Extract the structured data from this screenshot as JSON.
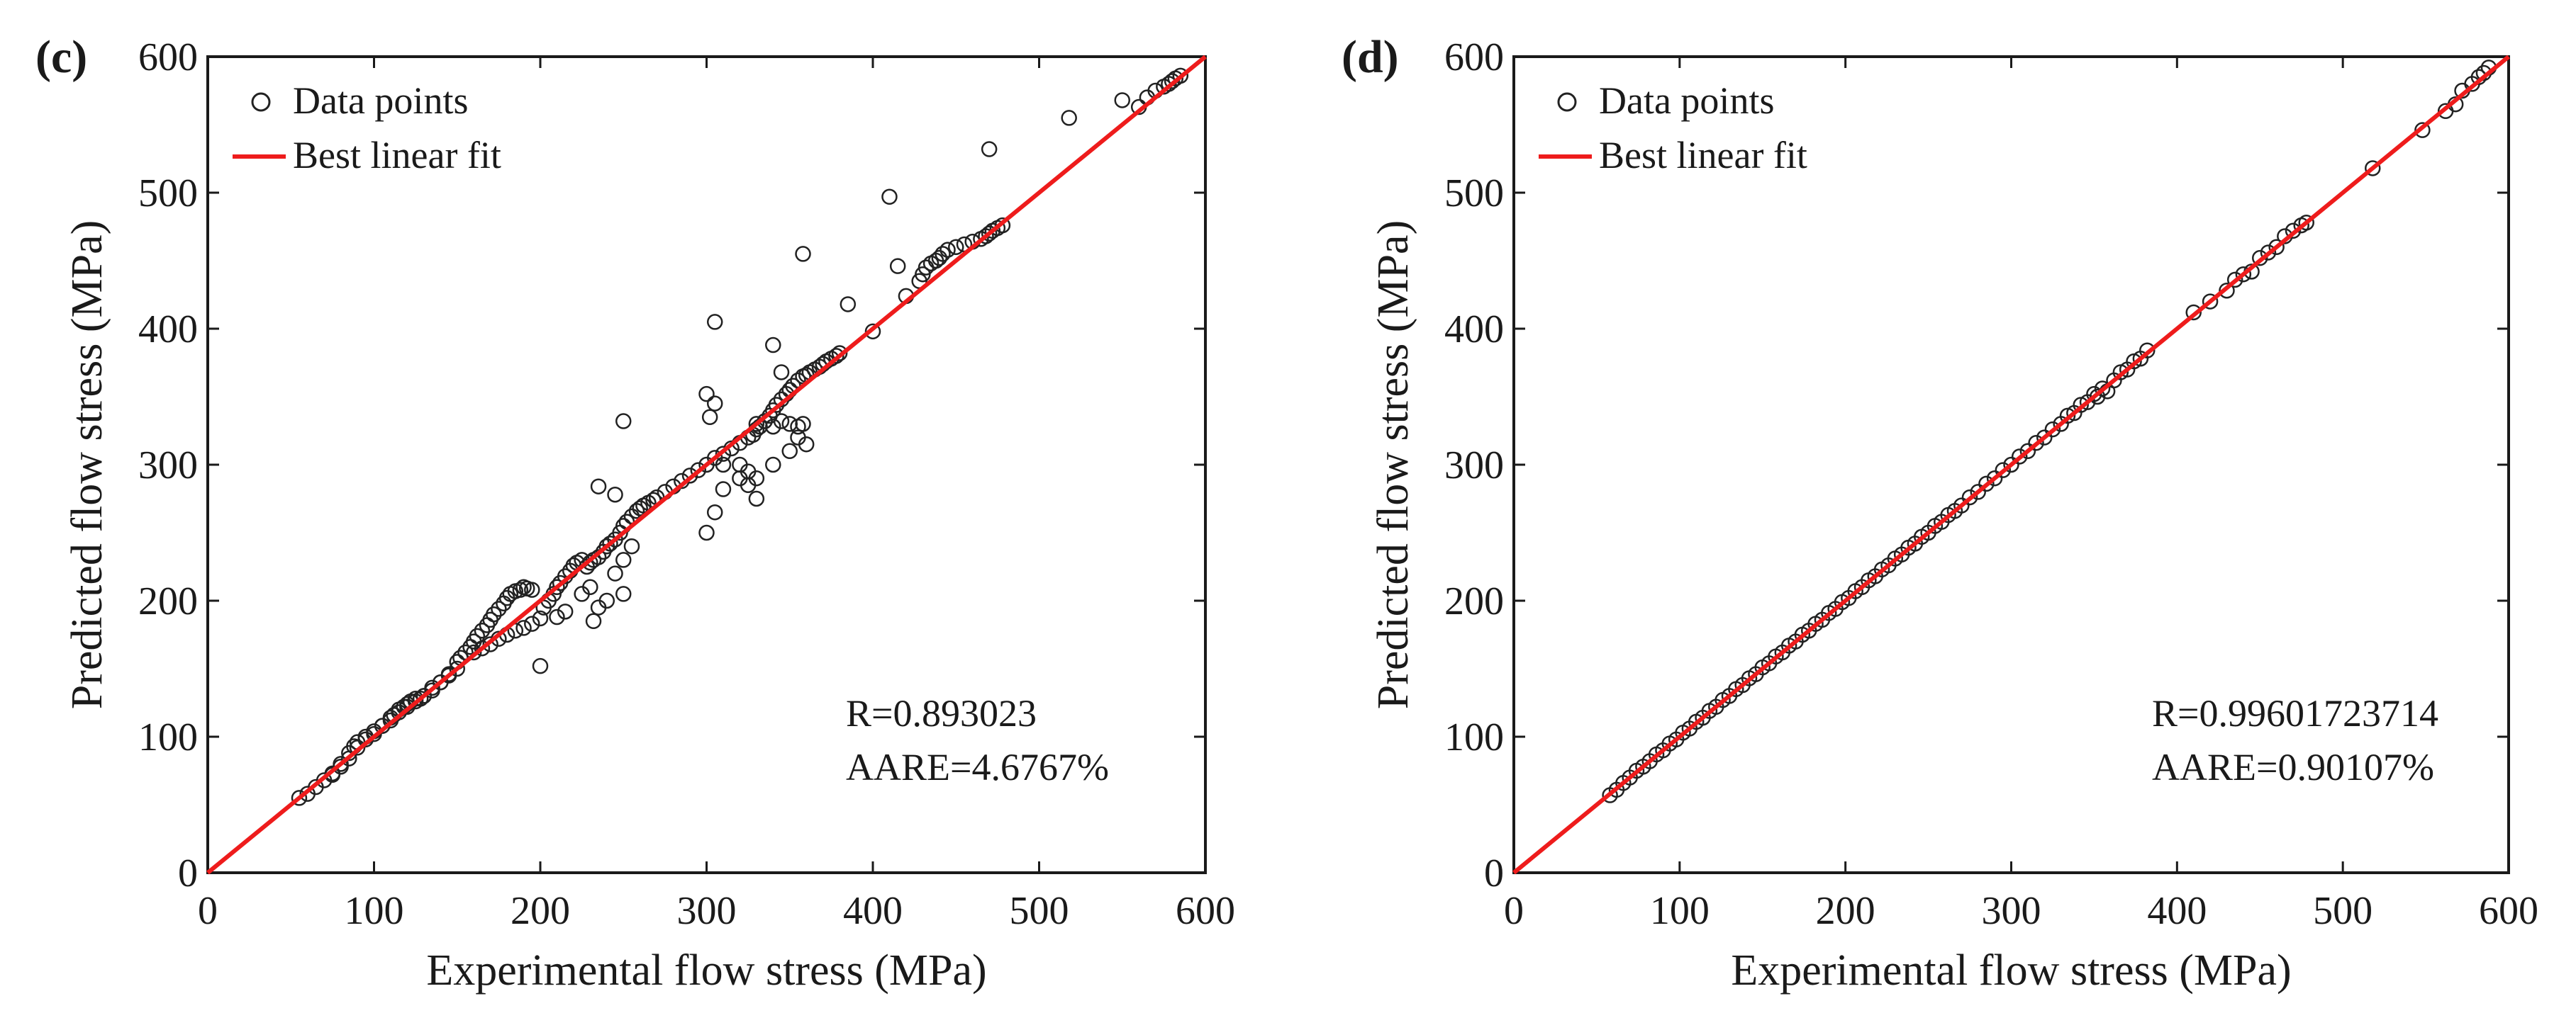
{
  "chart_data": [
    {
      "panel_label": "(c)",
      "type": "scatter",
      "xlabel": "Experimental flow stress (MPa)",
      "ylabel": "Predicted flow stress (MPa)",
      "xlim": [
        0,
        600
      ],
      "ylim": [
        0,
        600
      ],
      "xticks": [
        "0",
        "100",
        "200",
        "300",
        "400",
        "500",
        "600"
      ],
      "yticks": [
        "0",
        "100",
        "200",
        "300",
        "400",
        "500",
        "600"
      ],
      "legend": {
        "position": "top-left",
        "entries": [
          "Data points",
          "Best linear fit"
        ]
      },
      "stats": [
        "R=0.893023",
        "AARE=4.6767%"
      ],
      "fit_line": {
        "x": [
          0,
          600
        ],
        "y": [
          0,
          600
        ]
      },
      "series": [
        {
          "name": "Data points",
          "x": [
            55,
            60,
            65,
            70,
            75,
            80,
            85,
            88,
            90,
            95,
            100,
            105,
            110,
            112,
            115,
            118,
            120,
            122,
            125,
            128,
            130,
            135,
            140,
            145,
            150,
            150,
            152,
            155,
            158,
            160,
            162,
            165,
            168,
            170,
            172,
            175,
            178,
            180,
            182,
            185,
            188,
            190,
            192,
            195,
            160,
            165,
            170,
            175,
            180,
            185,
            190,
            195,
            200,
            202,
            205,
            208,
            210,
            212,
            215,
            218,
            220,
            222,
            225,
            228,
            230,
            232,
            235,
            238,
            240,
            242,
            245,
            248,
            250,
            252,
            255,
            258,
            260,
            262,
            265,
            268,
            270,
            275,
            280,
            285,
            290,
            295,
            300,
            305,
            310,
            315,
            320,
            325,
            328,
            330,
            332,
            335,
            338,
            340,
            342,
            345,
            348,
            350,
            352,
            355,
            358,
            360,
            362,
            365,
            368,
            370,
            372,
            375,
            378,
            380,
            330,
            335,
            340,
            345,
            350,
            355,
            358,
            320,
            325,
            330,
            340,
            350,
            355,
            360,
            310,
            320,
            325,
            330,
            300,
            305,
            310,
            200,
            210,
            215,
            225,
            230,
            232,
            235,
            240,
            245,
            250,
            250,
            255,
            235,
            245,
            250,
            305,
            305,
            300,
            302,
            340,
            345,
            358,
            385,
            400,
            410,
            415,
            420,
            428,
            430,
            432,
            435,
            438,
            440,
            442,
            445,
            450,
            455,
            460,
            465,
            468,
            470,
            472,
            475,
            478,
            470,
            518,
            550,
            560,
            565,
            570,
            575,
            578,
            580,
            582,
            585,
            75,
            80,
            85,
            90,
            95,
            100,
            105,
            110,
            115,
            120,
            125,
            130,
            135,
            140,
            145
          ],
          "y": [
            55,
            58,
            63,
            68,
            73,
            80,
            88,
            93,
            96,
            100,
            104,
            108,
            112,
            116,
            120,
            122,
            124,
            126,
            128,
            128,
            130,
            134,
            140,
            145,
            150,
            155,
            158,
            162,
            166,
            170,
            174,
            178,
            182,
            186,
            190,
            194,
            198,
            202,
            205,
            207,
            208,
            210,
            209,
            208,
            162,
            165,
            168,
            172,
            175,
            178,
            180,
            183,
            187,
            195,
            200,
            205,
            210,
            213,
            218,
            222,
            226,
            228,
            230,
            225,
            228,
            230,
            232,
            236,
            240,
            242,
            245,
            250,
            255,
            258,
            262,
            266,
            268,
            270,
            272,
            274,
            276,
            280,
            284,
            288,
            292,
            296,
            300,
            305,
            308,
            312,
            316,
            320,
            322,
            326,
            328,
            332,
            336,
            340,
            344,
            348,
            352,
            355,
            358,
            362,
            365,
            366,
            368,
            370,
            372,
            374,
            376,
            378,
            380,
            382,
            330,
            332,
            328,
            332,
            330,
            328,
            330,
            300,
            295,
            290,
            300,
            310,
            320,
            315,
            300,
            290,
            285,
            275,
            250,
            265,
            282,
            152,
            188,
            192,
            205,
            210,
            185,
            195,
            200,
            220,
            205,
            230,
            240,
            284,
            278,
            332,
            345,
            405,
            352,
            335,
            388,
            368,
            455,
            418,
            398,
            497,
            446,
            424,
            435,
            440,
            445,
            448,
            450,
            452,
            455,
            458,
            460,
            462,
            464,
            466,
            468,
            470,
            472,
            474,
            476,
            532,
            555,
            568,
            563,
            570,
            575,
            578,
            580,
            582,
            584,
            586,
            72,
            78,
            84,
            92,
            98,
            102,
            108,
            114,
            118,
            122,
            126,
            130,
            136,
            140,
            146
          ]
        }
      ]
    },
    {
      "panel_label": "(d)",
      "type": "scatter",
      "xlabel": "Experimental flow stress (MPa)",
      "ylabel": "Predicted flow stress (MPa)",
      "xlim": [
        0,
        600
      ],
      "ylim": [
        0,
        600
      ],
      "xticks": [
        "0",
        "100",
        "200",
        "300",
        "400",
        "500",
        "600"
      ],
      "yticks": [
        "0",
        "100",
        "200",
        "300",
        "400",
        "500",
        "600"
      ],
      "legend": {
        "position": "top-left",
        "entries": [
          "Data points",
          "Best linear fit"
        ]
      },
      "stats": [
        "R=0.99601723714",
        "AARE=0.90107%"
      ],
      "fit_line": {
        "x": [
          0,
          600
        ],
        "y": [
          0,
          600
        ]
      },
      "series": [
        {
          "name": "Data points",
          "x": [
            58,
            62,
            66,
            70,
            74,
            78,
            82,
            86,
            90,
            94,
            98,
            102,
            106,
            110,
            114,
            118,
            122,
            126,
            130,
            134,
            138,
            142,
            146,
            150,
            154,
            158,
            162,
            166,
            170,
            174,
            178,
            182,
            186,
            190,
            194,
            198,
            202,
            206,
            210,
            214,
            218,
            222,
            226,
            230,
            234,
            238,
            242,
            246,
            250,
            254,
            258,
            262,
            266,
            270,
            275,
            280,
            285,
            290,
            295,
            300,
            305,
            310,
            315,
            320,
            325,
            330,
            334,
            338,
            342,
            346,
            350,
            352,
            355,
            358,
            362,
            366,
            370,
            374,
            378,
            382,
            410,
            420,
            430,
            435,
            440,
            445,
            450,
            455,
            460,
            465,
            470,
            475,
            478,
            518,
            548,
            562,
            568,
            572,
            578,
            582,
            585,
            588
          ],
          "y": [
            57,
            61,
            66,
            70,
            75,
            78,
            82,
            87,
            90,
            95,
            98,
            103,
            106,
            111,
            114,
            119,
            122,
            127,
            130,
            135,
            138,
            143,
            146,
            151,
            154,
            159,
            162,
            167,
            170,
            175,
            178,
            183,
            186,
            191,
            194,
            199,
            202,
            207,
            210,
            215,
            218,
            223,
            226,
            231,
            234,
            239,
            242,
            247,
            250,
            255,
            258,
            263,
            266,
            270,
            276,
            280,
            286,
            290,
            296,
            300,
            306,
            310,
            316,
            320,
            326,
            330,
            336,
            338,
            344,
            346,
            352,
            350,
            356,
            354,
            362,
            368,
            370,
            376,
            378,
            384,
            412,
            420,
            428,
            436,
            440,
            442,
            452,
            456,
            460,
            468,
            472,
            476,
            478,
            518,
            546,
            560,
            565,
            575,
            580,
            585,
            588,
            592
          ]
        }
      ]
    }
  ]
}
